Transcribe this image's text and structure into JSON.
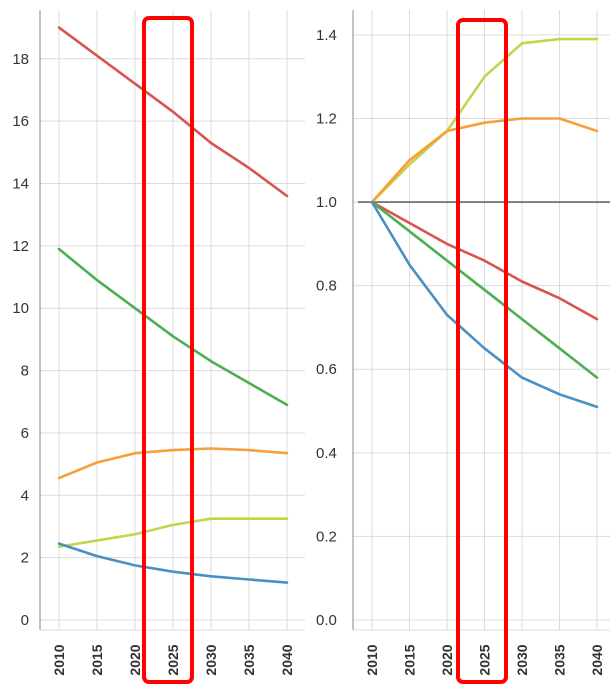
{
  "colors": {
    "blue": "#4a90c2",
    "red": "#d9534f",
    "green": "#4caf50",
    "orange": "#f5a03a",
    "yellow_green": "#c8d24a",
    "grid": "#dcdcdc",
    "axis": "#888888",
    "baseline": "#666666",
    "highlight": "#ff0000"
  },
  "chart_data": [
    {
      "type": "line",
      "x": [
        2010,
        2015,
        2020,
        2025,
        2030,
        2035,
        2040
      ],
      "y_ticks": [
        "0",
        "2",
        "4",
        "6",
        "8",
        "10",
        "12",
        "14",
        "16",
        "18"
      ],
      "x_tick_labels": [
        "2010",
        "2015",
        "2020",
        "2025",
        "2030",
        "2035",
        "2040"
      ],
      "ylim": [
        0,
        19.5
      ],
      "grid": true,
      "highlight_x": 2025,
      "series": [
        {
          "color": "#d9534f",
          "values": [
            19.0,
            18.1,
            17.2,
            16.3,
            15.3,
            14.5,
            13.6
          ]
        },
        {
          "color": "#4caf50",
          "values": [
            11.9,
            10.9,
            10.0,
            9.1,
            8.3,
            7.6,
            6.9
          ]
        },
        {
          "color": "#f5a03a",
          "values": [
            4.55,
            5.05,
            5.35,
            5.45,
            5.5,
            5.45,
            5.35
          ]
        },
        {
          "color": "#c8d24a",
          "values": [
            2.35,
            2.55,
            2.75,
            3.05,
            3.25,
            3.25,
            3.25
          ]
        },
        {
          "color": "#4a90c2",
          "values": [
            2.45,
            2.05,
            1.75,
            1.55,
            1.4,
            1.3,
            1.2
          ]
        }
      ]
    },
    {
      "type": "line",
      "x": [
        2010,
        2015,
        2020,
        2025,
        2030,
        2035,
        2040
      ],
      "y_ticks": [
        "0.0",
        "0.2",
        "0.4",
        "0.6",
        "0.8",
        "1.0",
        "1.2",
        "1.4"
      ],
      "x_tick_labels": [
        "2010",
        "2015",
        "2020",
        "2025",
        "2030",
        "2035",
        "2040"
      ],
      "ylim": [
        0,
        1.45
      ],
      "grid": true,
      "baseline_y": 1.0,
      "highlight_x": 2025,
      "series": [
        {
          "color": "#c8d24a",
          "values": [
            1.0,
            1.09,
            1.17,
            1.3,
            1.38,
            1.39,
            1.39
          ]
        },
        {
          "color": "#f5a03a",
          "values": [
            1.0,
            1.1,
            1.17,
            1.19,
            1.2,
            1.2,
            1.17
          ]
        },
        {
          "color": "#d9534f",
          "values": [
            1.0,
            0.95,
            0.9,
            0.86,
            0.81,
            0.77,
            0.72
          ]
        },
        {
          "color": "#4caf50",
          "values": [
            1.0,
            0.93,
            0.86,
            0.79,
            0.72,
            0.65,
            0.58
          ]
        },
        {
          "color": "#4a90c2",
          "values": [
            1.0,
            0.85,
            0.73,
            0.65,
            0.58,
            0.54,
            0.51
          ]
        }
      ]
    }
  ]
}
